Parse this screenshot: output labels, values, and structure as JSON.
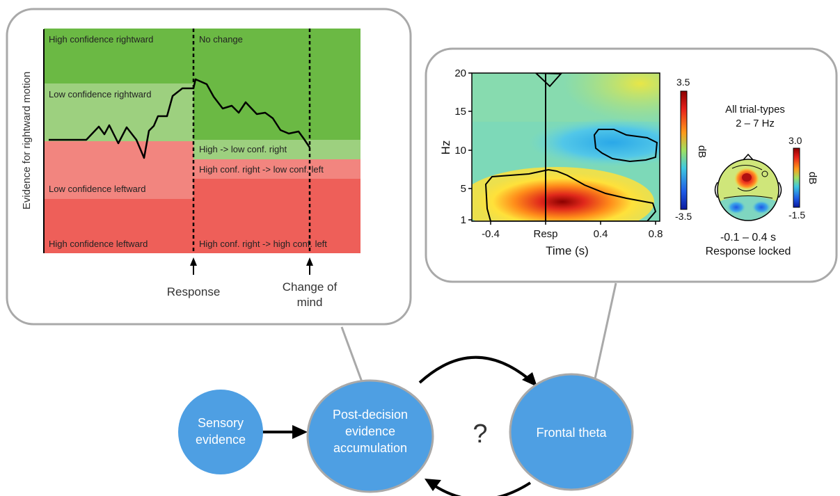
{
  "left_panel": {
    "ylabel": "Evidence for rightward motion",
    "bands": {
      "high_right": "High confidence rightward",
      "low_right": "Low confidence rightward",
      "low_left": "Low confidence leftward",
      "high_left": "High confidence leftward",
      "no_change": "No change",
      "high_to_low_right": "High -> low conf. right",
      "right_to_low_left": "High conf. right -> low conf. left",
      "right_to_high_left": "High conf. right -> high conf. left"
    },
    "annotations": {
      "response": "Response",
      "change_of_mind_line1": "Change of",
      "change_of_mind_line2": "mind"
    },
    "colors": {
      "dark_green": "#6BB944",
      "light_green": "#9DD07F",
      "light_red": "#F2857F",
      "dark_red": "#EE5F59"
    }
  },
  "right_panel": {
    "ylabel": "Hz",
    "xlabel": "Time (s)",
    "xticks": [
      "-0.4",
      "Resp",
      "0.4",
      "0.8"
    ],
    "yticks": [
      "1",
      "5",
      "10",
      "15",
      "20"
    ],
    "colorbar": {
      "max": "3.5",
      "min": "-3.5",
      "unit": "dB"
    },
    "topo": {
      "title_line1": "All trial-types",
      "title_line2": "2 – 7 Hz",
      "caption_line1": "-0.1 – 0.4 s",
      "caption_line2": "Response locked",
      "colorbar": {
        "max": "3.0",
        "min": "-1.5",
        "unit": "dB"
      }
    }
  },
  "nodes": {
    "sensory": "Sensory evidence",
    "sensory_line1": "Sensory",
    "sensory_line2": "evidence",
    "post_line1": "Post-decision",
    "post_line2": "evidence",
    "post_line3": "accumulation",
    "frontal": "Frontal theta",
    "question": "?",
    "node_color": "#4E9FE3"
  }
}
